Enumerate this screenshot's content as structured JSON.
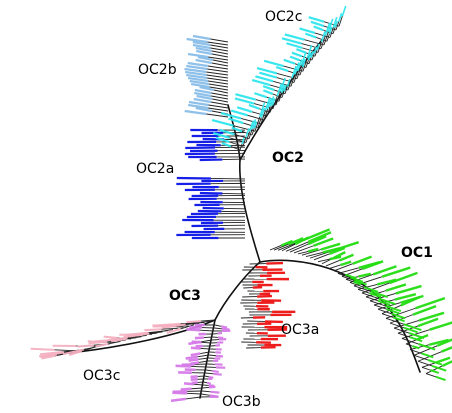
{
  "figure": {
    "type": "unrooted phylogenetic tree",
    "clades": [
      {
        "id": "OC1",
        "label": "OC1",
        "color": "#22dd11",
        "level": "main"
      },
      {
        "id": "OC2",
        "label": "OC2",
        "color": "#000000",
        "level": "main"
      },
      {
        "id": "OC2a",
        "label": "OC2a",
        "color": "#0a14e6",
        "level": "sub"
      },
      {
        "id": "OC2b",
        "label": "OC2b",
        "color": "#88bde8",
        "level": "sub"
      },
      {
        "id": "OC2c",
        "label": "OC2c",
        "color": "#2ee6ee",
        "level": "sub"
      },
      {
        "id": "OC3",
        "label": "OC3",
        "color": "#000000",
        "level": "main"
      },
      {
        "id": "OC3a",
        "label": "OC3a",
        "color": "#ee1111",
        "level": "sub"
      },
      {
        "id": "OC3b",
        "label": "OC3b",
        "color": "#d57be8",
        "level": "sub"
      },
      {
        "id": "OC3c",
        "label": "OC3c",
        "color": "#f4b0c0",
        "level": "sub"
      }
    ]
  }
}
